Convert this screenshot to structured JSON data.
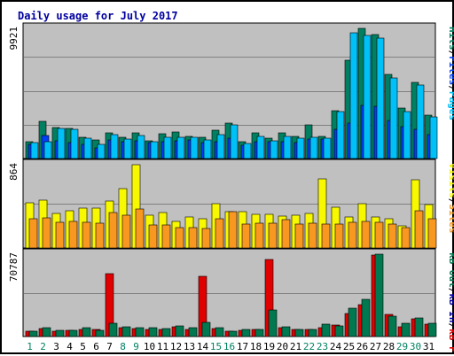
{
  "colors": {
    "title": "#0000a0",
    "panel_bg": "#c0c0c0",
    "grid": "#808080",
    "pages": "#00c0f8",
    "files": "#0040f8",
    "hits": "#008060",
    "visits": "#f8f800",
    "sites": "#f89820",
    "kb_in": "#0000a0",
    "kb_out": "#007850",
    "kb_f": "#e00000",
    "day_weekday": "#000000",
    "day_weekend": "#008060",
    "separator": "#000000"
  },
  "chart_data": {
    "type": "bar",
    "title": "Daily usage for July 2017",
    "categories": [
      "1",
      "2",
      "3",
      "4",
      "5",
      "6",
      "7",
      "8",
      "9",
      "10",
      "11",
      "12",
      "13",
      "14",
      "15",
      "16",
      "17",
      "18",
      "19",
      "20",
      "21",
      "22",
      "23",
      "24",
      "25",
      "26",
      "27",
      "28",
      "29",
      "30",
      "31"
    ],
    "weekend_days": [
      "1",
      "2",
      "8",
      "9",
      "15",
      "16",
      "22",
      "23",
      "29",
      "30"
    ],
    "panels": [
      {
        "id": "hits",
        "ymax_label": "9921",
        "ylim": [
          0,
          9921
        ],
        "right_labels": [
          {
            "text": "Hits",
            "color": "#008060"
          },
          {
            "text": "/",
            "color": "#000000"
          },
          {
            "text": "Files",
            "color": "#0040f8"
          },
          {
            "text": "/",
            "color": "#000000"
          },
          {
            "text": "Pages",
            "color": "#00c0f8"
          }
        ],
        "series": [
          {
            "name": "Hits",
            "color": "#008060",
            "values": [
              1300,
              2805,
              2380,
              2305,
              1630,
              1450,
              1960,
              1630,
              1940,
              1380,
              1880,
              2050,
              1720,
              1590,
              2180,
              2720,
              1250,
              1980,
              1580,
              1960,
              1680,
              2580,
              1680,
              3650,
              7500,
              9921,
              9450,
              6400,
              3850,
              5800,
              3340
            ]
          },
          {
            "name": "Files",
            "color": "#0040f8",
            "values": [
              1100,
              1750,
              1320,
              1200,
              1050,
              830,
              1400,
              1300,
              1350,
              1200,
              1250,
              1350,
              1400,
              1200,
              1300,
              1550,
              1000,
              1250,
              1300,
              1250,
              1200,
              1500,
              1500,
              2200,
              2700,
              4050,
              4000,
              2900,
              2400,
              2200,
              1800
            ]
          },
          {
            "name": "Pages",
            "color": "#00c0f8",
            "values": [
              1200,
              1250,
              2300,
              2250,
              1520,
              1100,
              1820,
              1500,
              1750,
              1280,
              1620,
              1620,
              1600,
              1400,
              1850,
              2580,
              1150,
              1670,
              1320,
              1660,
              1540,
              1650,
              1570,
              3580,
              9600,
              9350,
              9150,
              6150,
              3600,
              5600,
              3200
            ]
          }
        ]
      },
      {
        "id": "visits",
        "ymax_label": "864",
        "ylim": [
          0,
          864
        ],
        "right_labels": [
          {
            "text": "Visits",
            "color": "#f8f800"
          },
          {
            "text": "/",
            "color": "#000000"
          },
          {
            "text": "Sites",
            "color": "#f89820"
          }
        ],
        "series": [
          {
            "name": "Visits",
            "color": "#f8f800",
            "values": [
              470,
              500,
              360,
              390,
              410,
              410,
              490,
              620,
              864,
              340,
              370,
              280,
              320,
              300,
              460,
              380,
              380,
              350,
              350,
              330,
              340,
              360,
              720,
              420,
              320,
              460,
              320,
              300,
              230,
              710,
              450
            ]
          },
          {
            "name": "Sites",
            "color": "#f89820",
            "values": [
              300,
              310,
              270,
              280,
              270,
              260,
              370,
              340,
              400,
              240,
              240,
              210,
              210,
              200,
              300,
              380,
              250,
              260,
              260,
              290,
              250,
              260,
              250,
              250,
              270,
              280,
              270,
              250,
              210,
              390,
              300
            ]
          }
        ]
      },
      {
        "id": "kbytes",
        "ymax_label": "70787",
        "ylim": [
          0,
          70787
        ],
        "right_labels": [
          {
            "text": "kB Out",
            "color": "#007850"
          },
          {
            "text": "/",
            "color": "#000000"
          },
          {
            "text": "kB In",
            "color": "#0000a0"
          },
          {
            "text": "/",
            "color": "#000000"
          },
          {
            "text": "kB F",
            "color": "#e00000"
          }
        ],
        "series": [
          {
            "name": "kB F",
            "color": "#e00000",
            "values": [
              4300,
              7000,
              4800,
              5000,
              6100,
              5800,
              53700,
              7500,
              6900,
              6200,
              6400,
              8400,
              6300,
              52000,
              6800,
              4300,
              5700,
              5800,
              66200,
              7300,
              6400,
              5800,
              7800,
              9700,
              20000,
              27500,
              69900,
              19000,
              8100,
              14900,
              10300
            ]
          },
          {
            "name": "kB Out",
            "color": "#007850",
            "values": [
              4800,
              7700,
              5100,
              5700,
              7700,
              5600,
              11500,
              8100,
              7300,
              7400,
              6800,
              8900,
              7400,
              12200,
              7400,
              4900,
              6200,
              6000,
              22500,
              8300,
              5900,
              6200,
              10300,
              9500,
              24000,
              31700,
              70787,
              17600,
              11300,
              15800,
              11600
            ]
          }
        ]
      }
    ]
  }
}
